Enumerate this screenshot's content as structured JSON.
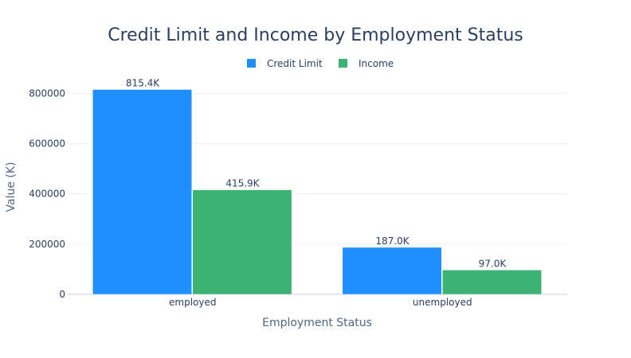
{
  "chart_data": {
    "type": "bar",
    "title": "Credit Limit and Income by Employment Status",
    "xlabel": "Employment Status",
    "ylabel": "Value (K)",
    "categories": [
      "employed",
      "unemployed"
    ],
    "series": [
      {
        "name": "Credit Limit",
        "color": "#1f8fff",
        "values": [
          815400,
          187000
        ],
        "labels": [
          "815.4K",
          "187.0K"
        ]
      },
      {
        "name": "Income",
        "color": "#3cb371",
        "values": [
          415900,
          97000
        ],
        "labels": [
          "415.9K",
          "97.0K"
        ]
      }
    ],
    "ylim": [
      0,
      855000
    ],
    "yticks": [
      0,
      200000,
      400000,
      600000,
      800000
    ],
    "ytick_labels": [
      "0",
      "200000",
      "400000",
      "600000",
      "800000"
    ],
    "legend_position": "top-center",
    "grid": true
  }
}
